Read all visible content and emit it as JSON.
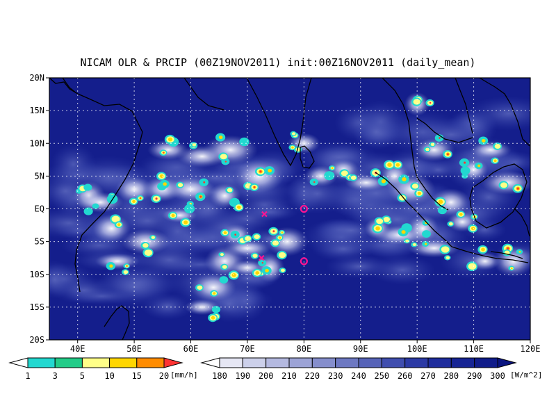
{
  "chart_data": {
    "type": "heatmap",
    "title": "NICAM OLR & PRCIP (00Z19NOV2011) init:00Z16NOV2011 (daily_mean)",
    "x_axis": {
      "range": [
        35,
        120
      ],
      "ticks": [
        40,
        50,
        60,
        70,
        80,
        90,
        100,
        110,
        120
      ],
      "tick_labels": [
        "40E",
        "50E",
        "60E",
        "70E",
        "80E",
        "90E",
        "100E",
        "110E",
        "120E"
      ]
    },
    "y_axis": {
      "range": [
        -20,
        20
      ],
      "ticks": [
        20,
        15,
        10,
        5,
        0,
        -5,
        -10,
        -15,
        -20
      ],
      "tick_labels": [
        "20N",
        "15N",
        "10N",
        "5N",
        "EQ",
        "5S",
        "10S",
        "15S",
        "20S"
      ]
    },
    "grid": "dotted",
    "precip_colorbar": {
      "unit": "[mm/h]",
      "levels": [
        1,
        3,
        5,
        10,
        15,
        20
      ],
      "level_labels": [
        "1",
        "3",
        "5",
        "10",
        "15",
        "20"
      ],
      "colors": [
        "#ffffff",
        "#22d8d0",
        "#22cc88",
        "#ffff88",
        "#ffd600",
        "#ff8c00",
        "#ff3333"
      ]
    },
    "olr_colorbar": {
      "unit": "[W/m^2]",
      "levels": [
        180,
        190,
        200,
        210,
        220,
        230,
        240,
        250,
        260,
        270,
        280,
        290,
        300
      ],
      "level_labels": [
        "180",
        "190",
        "200",
        "210",
        "220",
        "230",
        "240",
        "250",
        "260",
        "270",
        "280",
        "290",
        "300"
      ],
      "colors": [
        "#ffffff",
        "#e6e7f4",
        "#ccd0ea",
        "#b4b9e0",
        "#9ca3d6",
        "#858ecc",
        "#6d78c2",
        "#5663b8",
        "#404eaf",
        "#2c3aa5",
        "#1f2d9d",
        "#162494",
        "#101c8a",
        "#0a1480"
      ]
    },
    "markers": [
      {
        "type": "x",
        "lon": 73,
        "lat": -0.8,
        "color": "#ff1493"
      },
      {
        "type": "x",
        "lon": 72.5,
        "lat": -7.5,
        "color": "#ff1493"
      },
      {
        "type": "circle",
        "lon": 80,
        "lat": 0,
        "color": "#ff1493"
      },
      {
        "type": "circle",
        "lon": 80,
        "lat": -8,
        "color": "#ff1493"
      }
    ]
  }
}
